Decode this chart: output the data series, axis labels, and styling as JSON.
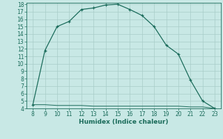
{
  "title": "",
  "xlabel": "Humidex (Indice chaleur)",
  "ylabel": "",
  "line1_x": [
    8,
    9,
    10,
    11,
    12,
    13,
    14,
    15,
    16,
    17,
    18,
    19,
    20,
    21,
    22,
    23
  ],
  "line1_y": [
    4.5,
    11.8,
    15.0,
    15.7,
    17.3,
    17.5,
    17.9,
    18.0,
    17.3,
    16.5,
    15.0,
    12.5,
    11.3,
    7.8,
    5.0,
    4.0
  ],
  "line2_x": [
    8,
    9,
    10,
    11,
    12,
    13,
    14,
    15,
    16,
    17,
    18,
    19,
    20,
    21,
    22,
    23
  ],
  "line2_y": [
    4.5,
    4.5,
    4.4,
    4.4,
    4.4,
    4.3,
    4.3,
    4.3,
    4.3,
    4.3,
    4.3,
    4.3,
    4.3,
    4.2,
    4.2,
    4.0
  ],
  "line_color": "#1a6b5a",
  "bg_color": "#c8e8e5",
  "grid_color": "#a8ccc8",
  "xlim": [
    7.5,
    23.5
  ],
  "ylim": [
    4,
    18
  ],
  "xticks": [
    8,
    9,
    10,
    11,
    12,
    13,
    14,
    15,
    16,
    17,
    18,
    19,
    20,
    21,
    22,
    23
  ],
  "yticks": [
    4,
    5,
    6,
    7,
    8,
    9,
    10,
    11,
    12,
    13,
    14,
    15,
    16,
    17,
    18
  ],
  "tick_fontsize": 5.5,
  "xlabel_fontsize": 6.5
}
